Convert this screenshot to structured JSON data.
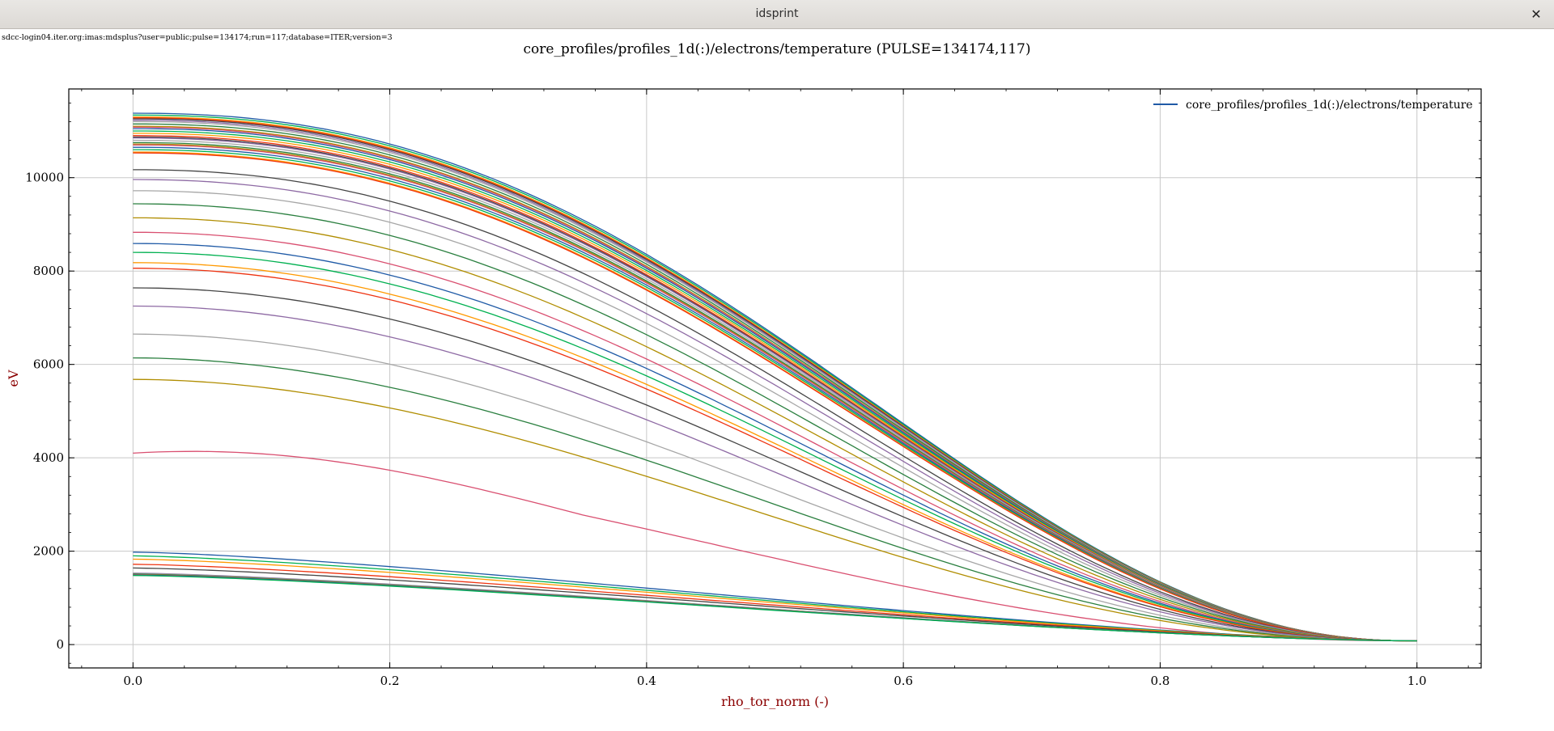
{
  "window": {
    "title": "idsprint",
    "close_glyph": "✕",
    "close_icon": "close-icon"
  },
  "source_uri": "sdcc-login04.iter.org:imas:mdsplus?user=public;pulse=134174;run=117;database=ITER;version=3",
  "chart_data": {
    "type": "line",
    "title": "core_profiles/profiles_1d(:)/electrons/temperature (PULSE=134174,117)",
    "xlabel": "rho_tor_norm (-)",
    "ylabel": "eV",
    "xlim": [
      -0.05,
      1.05
    ],
    "ylim": [
      -500,
      11900
    ],
    "xticks": [
      0.0,
      0.2,
      0.4,
      0.6,
      0.8,
      1.0
    ],
    "xtick_labels": [
      "0.0",
      "0.2",
      "0.4",
      "0.6",
      "0.8",
      "1.0"
    ],
    "yticks": [
      0,
      2000,
      4000,
      6000,
      8000,
      10000
    ],
    "ytick_labels": [
      "0",
      "2000",
      "4000",
      "6000",
      "8000",
      "10000"
    ],
    "grid": true,
    "legend": {
      "position": "top-right",
      "entries": [
        "core_profiles/profiles_1d(:)/electrons/temperature"
      ],
      "color": "#1f5aa6"
    },
    "x_range": [
      0.0,
      1.0
    ],
    "color_cycle": [
      "#1f5aa6",
      "#00b050",
      "#ff9900",
      "#ee3311",
      "#444444",
      "#8e6aa4",
      "#a6a6a6",
      "#2a7f3f",
      "#b08d00",
      "#d94f70"
    ],
    "curves_core_T": [
      11380,
      11340,
      11300,
      11280,
      11260,
      11230,
      11200,
      11150,
      11100,
      11080,
      11050,
      11000,
      10950,
      10900,
      10870,
      10850,
      10800,
      10750,
      10720,
      10700,
      10650,
      10600,
      10550,
      10530,
      10170,
      9960,
      9720,
      9440,
      9140,
      8830,
      8590,
      8400,
      8180,
      8060,
      7640,
      7250,
      6650,
      6140,
      5680,
      4100,
      1980,
      1900,
      1830,
      1720,
      1640,
      1530,
      1520,
      1510,
      1500,
      1495,
      1490,
      1480
    ],
    "edge_T": 80
  }
}
